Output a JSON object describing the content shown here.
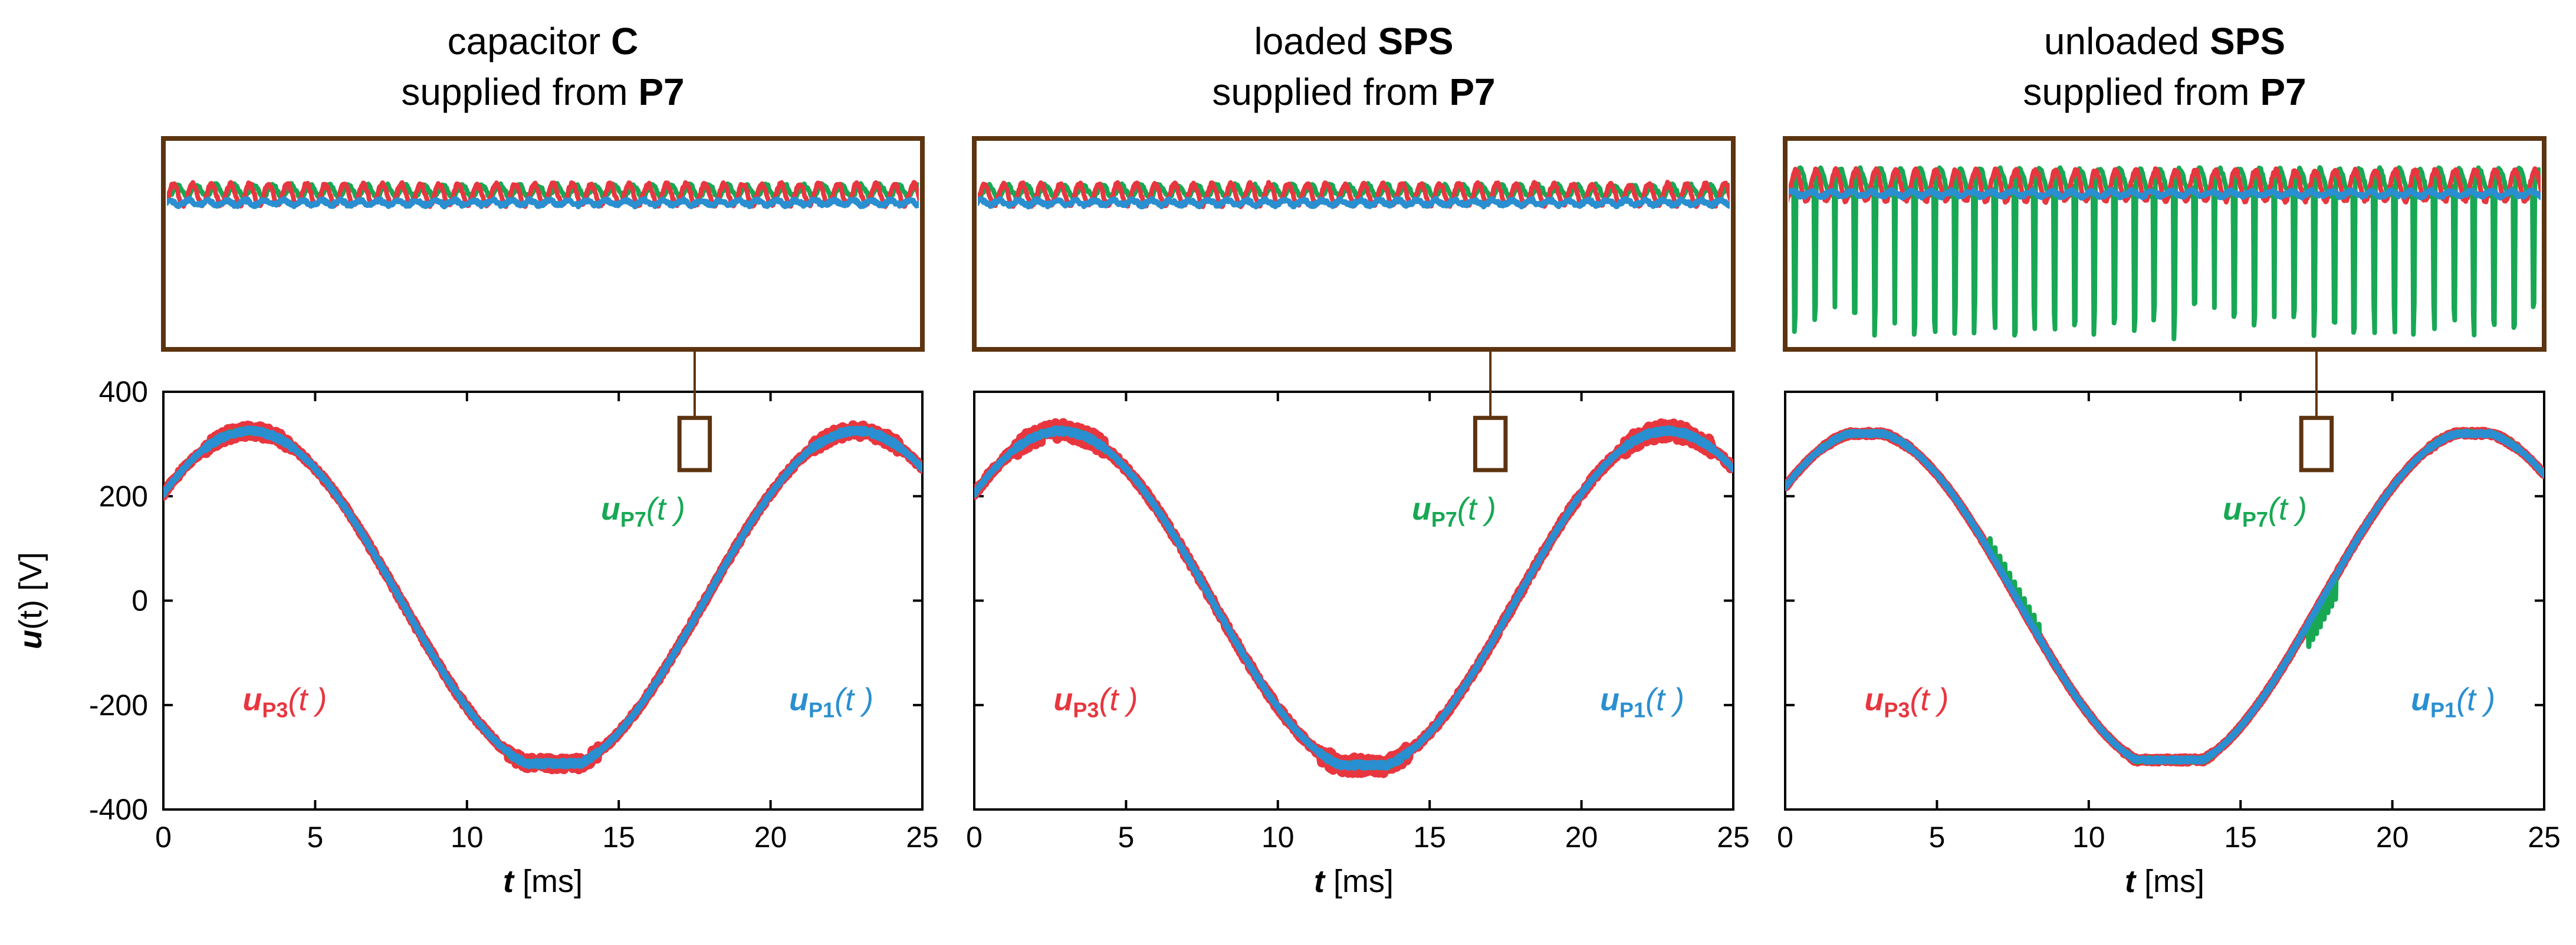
{
  "figure": {
    "ylabel_symbol": "u",
    "ylabel_rest": "(t) [V]",
    "xlabel_symbol": "t",
    "xlabel_rest": "[ms]",
    "curve_labels": {
      "p3": {
        "base": "u",
        "sub": "P3",
        "arg": "(t )"
      },
      "p7": {
        "base": "u",
        "sub": "P7",
        "arg": "(t )"
      },
      "p1": {
        "base": "u",
        "sub": "P1",
        "arg": "(t )"
      }
    }
  },
  "colors": {
    "p1": "#2a8fd0",
    "p3": "#e8363f",
    "p7": "#18a854",
    "frame": "#5c3410",
    "axis": "#000000"
  },
  "chart_data": [
    {
      "type": "line",
      "title_line1_normal": "capacitor ",
      "title_line1_bold": "C",
      "title_line2_normal": "supplied from ",
      "title_line2_bold": "P7",
      "xlabel": "t [ms]",
      "ylabel": "u(t) [V]",
      "xlim": [
        0,
        25
      ],
      "ylim": [
        -400,
        400
      ],
      "xticks": [
        0,
        5,
        10,
        15,
        20,
        25
      ],
      "yticks": [
        -400,
        -200,
        0,
        200,
        400
      ],
      "amplitude": 325,
      "frequency_hz": 50,
      "phase_deg": 39,
      "flat_top": 325,
      "flat_bottom": -312,
      "series": [
        {
          "name": "uP1(t)",
          "color_key": "p1",
          "ripple": 5
        },
        {
          "name": "uP3(t)",
          "color_key": "p3",
          "ripple": 12
        },
        {
          "name": "uP7(t)",
          "color_key": "p7",
          "ripple": 5
        }
      ],
      "zoom_window_ms": [
        17.0,
        18.0
      ],
      "zoom_window_V": [
        250,
        350
      ],
      "zoom_dips": false
    },
    {
      "type": "line",
      "title_line1_normal": "loaded ",
      "title_line1_bold": "SPS",
      "title_line2_normal": "supplied from ",
      "title_line2_bold": "P7",
      "xlabel": "t [ms]",
      "ylabel": "u(t) [V]",
      "xlim": [
        0,
        25
      ],
      "ylim": [
        -400,
        400
      ],
      "xticks": [
        0,
        5,
        10,
        15,
        20,
        25
      ],
      "yticks": [
        -400,
        -200,
        0,
        200,
        400
      ],
      "amplitude": 325,
      "frequency_hz": 50,
      "phase_deg": 39,
      "flat_top": 325,
      "flat_bottom": -315,
      "series": [
        {
          "name": "uP1(t)",
          "color_key": "p1",
          "ripple": 5
        },
        {
          "name": "uP3(t)",
          "color_key": "p3",
          "ripple": 16
        },
        {
          "name": "uP7(t)",
          "color_key": "p7",
          "ripple": 5
        }
      ],
      "zoom_window_ms": [
        16.5,
        17.5
      ],
      "zoom_window_V": [
        250,
        350
      ],
      "zoom_dips": false
    },
    {
      "type": "line",
      "title_line1_normal": "unloaded ",
      "title_line1_bold": "SPS",
      "title_line2_normal": "supplied from ",
      "title_line2_bold": "P7",
      "xlabel": "t [ms]",
      "ylabel": "u(t) [V]",
      "xlim": [
        0,
        25
      ],
      "ylim": [
        -400,
        400
      ],
      "xticks": [
        0,
        5,
        10,
        15,
        20,
        25
      ],
      "yticks": [
        -400,
        -200,
        0,
        200,
        400
      ],
      "amplitude": 325,
      "frequency_hz": 50,
      "phase_deg": 42,
      "flat_top": 320,
      "flat_bottom": -305,
      "series": [
        {
          "name": "uP1(t)",
          "color_key": "p1",
          "ripple": 3
        },
        {
          "name": "uP3(t)",
          "color_key": "p3",
          "ripple": 4
        },
        {
          "name": "uP7(t)",
          "color_key": "p7",
          "ripple": 4
        }
      ],
      "zoom_window_ms": [
        17.0,
        18.0
      ],
      "zoom_window_V": [
        250,
        350
      ],
      "zoom_dips": true
    }
  ]
}
